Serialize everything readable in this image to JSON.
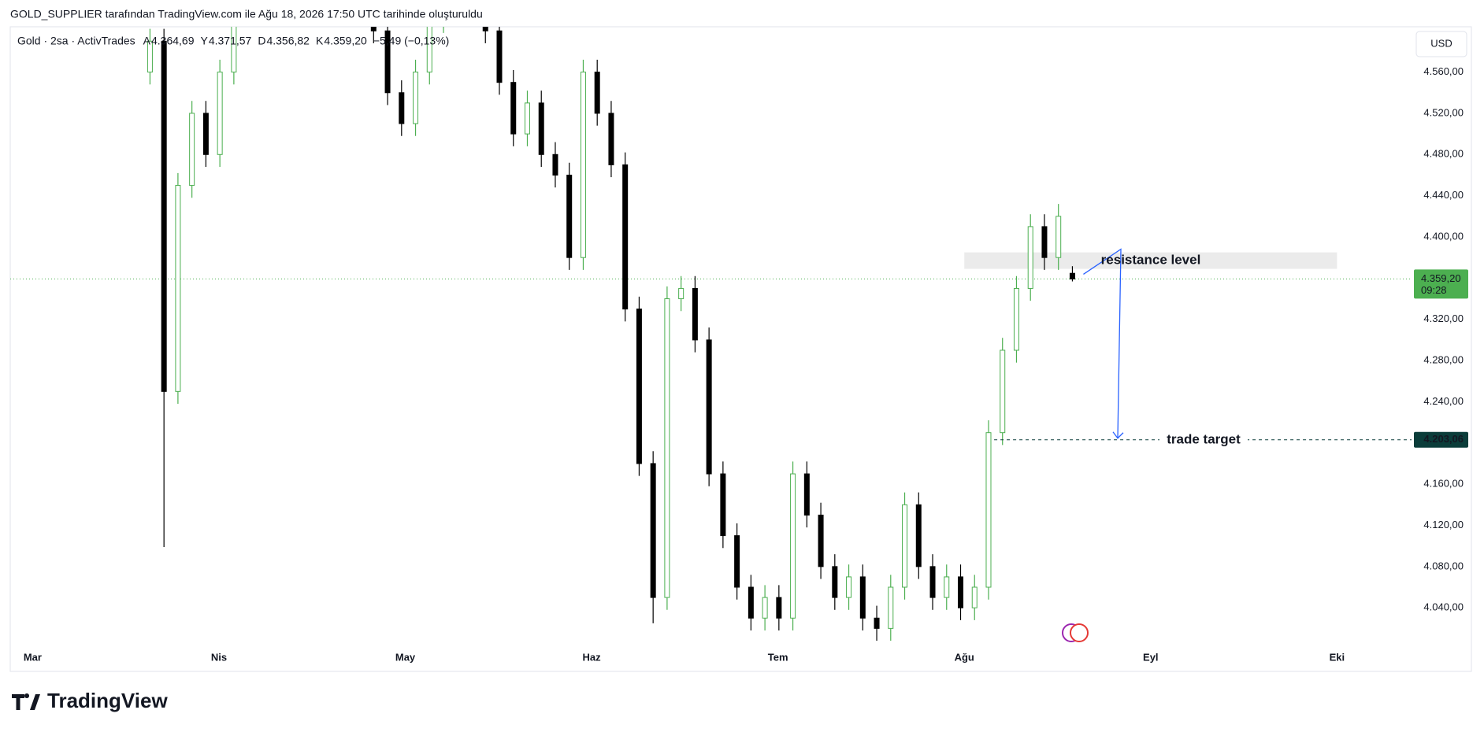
{
  "header": {
    "attribution": "GOLD_SUPPLIER tarafından TradingView.com ile Ağu 18, 2026 17:50 UTC tarihinde oluşturuldu",
    "logo": "TradingView"
  },
  "chart_data": {
    "type": "candlestick",
    "title": "Gold · 2sa · ActivTrades",
    "ohlc_legend": [
      {
        "label": "A",
        "value": "4.364,69"
      },
      {
        "label": "Y",
        "value": "4.371,57"
      },
      {
        "label": "D",
        "value": "4.356,82"
      },
      {
        "label": "K",
        "value": "4.359,20"
      }
    ],
    "change": "−5,49 (−0,13%)",
    "currency": "USD",
    "up_color": "#4caf50",
    "down_color": "#000000",
    "x": [
      0.63,
      0.705,
      0.78,
      0.855,
      0.93,
      1.005,
      1.08,
      1.155,
      1.23,
      1.305,
      1.38,
      1.455,
      1.53,
      1.605,
      1.68,
      1.755,
      1.83,
      1.905,
      1.98,
      2.055,
      2.13,
      2.205,
      2.28,
      2.355,
      2.43,
      2.505,
      2.58,
      2.655,
      2.73,
      2.805,
      2.88,
      2.955,
      3.03,
      3.105,
      3.18,
      3.255,
      3.33,
      3.405,
      3.48,
      3.555,
      3.63,
      3.705,
      3.78,
      3.855,
      3.93,
      4.005,
      4.08,
      4.155,
      4.23,
      4.305,
      4.38,
      4.455,
      4.53,
      4.605,
      4.68,
      4.755,
      4.83,
      4.905,
      4.98,
      5.055,
      5.13,
      5.205,
      5.28,
      5.355,
      5.43,
      5.505,
      5.58
    ],
    "open": [
      4560,
      4590,
      4250,
      4450,
      4520,
      4480,
      4560,
      4620,
      4680,
      4720,
      4700,
      4740,
      4710,
      4690,
      4660,
      4650,
      4630,
      4600,
      4540,
      4510,
      4560,
      4610,
      4650,
      4660,
      4640,
      4600,
      4550,
      4500,
      4530,
      4480,
      4460,
      4380,
      4560,
      4520,
      4470,
      4330,
      4180,
      4050,
      4340,
      4350,
      4300,
      4170,
      4110,
      4060,
      4030,
      4050,
      4030,
      4170,
      4130,
      4080,
      4050,
      4070,
      4030,
      4020,
      4060,
      4140,
      4080,
      4050,
      4070,
      4040,
      4060,
      4210,
      4290,
      4350,
      4410,
      4380,
      4364.69
    ],
    "high": [
      4602,
      4602,
      4462,
      4532,
      4532,
      4572,
      4632,
      4692,
      4732,
      4732,
      4752,
      4752,
      4722,
      4702,
      4672,
      4662,
      4642,
      4612,
      4552,
      4572,
      4622,
      4662,
      4672,
      4672,
      4652,
      4612,
      4562,
      4542,
      4542,
      4492,
      4472,
      4572,
      4572,
      4532,
      4482,
      4342,
      4192,
      4352,
      4362,
      4362,
      4312,
      4182,
      4122,
      4072,
      4062,
      4062,
      4182,
      4182,
      4142,
      4092,
      4082,
      4082,
      4042,
      4072,
      4152,
      4152,
      4092,
      4082,
      4082,
      4072,
      4222,
      4302,
      4362,
      4422,
      4422,
      4432,
      4371.57
    ],
    "low": [
      4548,
      4099,
      4238,
      4438,
      4468,
      4468,
      4548,
      4608,
      4668,
      4688,
      4688,
      4698,
      4678,
      4648,
      4638,
      4618,
      4588,
      4528,
      4498,
      4498,
      4548,
      4598,
      4638,
      4628,
      4588,
      4538,
      4488,
      4488,
      4468,
      4448,
      4368,
      4368,
      4508,
      4458,
      4318,
      4168,
      4025,
      4038,
      4328,
      4288,
      4158,
      4098,
      4048,
      4018,
      4018,
      4018,
      4018,
      4118,
      4068,
      4038,
      4038,
      4018,
      4008,
      4008,
      4048,
      4068,
      4038,
      4038,
      4028,
      4028,
      4048,
      4198,
      4278,
      4338,
      4368,
      4368,
      4356.82
    ],
    "close": [
      4590,
      4250,
      4450,
      4520,
      4480,
      4560,
      4620,
      4680,
      4720,
      4700,
      4740,
      4710,
      4690,
      4660,
      4650,
      4630,
      4600,
      4540,
      4510,
      4560,
      4610,
      4650,
      4660,
      4640,
      4600,
      4550,
      4500,
      4530,
      4480,
      4460,
      4380,
      4560,
      4520,
      4470,
      4330,
      4180,
      4050,
      4340,
      4350,
      4300,
      4170,
      4110,
      4060,
      4030,
      4050,
      4030,
      4170,
      4130,
      4080,
      4050,
      4070,
      4030,
      4020,
      4060,
      4140,
      4080,
      4050,
      4070,
      4040,
      4060,
      4210,
      4290,
      4350,
      4410,
      4380,
      4420,
      4359.2
    ],
    "xlim": [
      -0.12,
      7.4
    ],
    "xticks": [
      {
        "value": 0,
        "label": "Mar"
      },
      {
        "value": 1,
        "label": "Nis"
      },
      {
        "value": 2,
        "label": "May"
      },
      {
        "value": 3,
        "label": "Haz"
      },
      {
        "value": 4,
        "label": "Tem"
      },
      {
        "value": 5,
        "label": "Ağu"
      },
      {
        "value": 6,
        "label": "Eyl"
      },
      {
        "value": 7,
        "label": "Eki"
      }
    ],
    "ylim": [
      4005,
      4604
    ],
    "yticks": [
      {
        "value": 4040,
        "label": "4.040,00"
      },
      {
        "value": 4080,
        "label": "4.080,00"
      },
      {
        "value": 4120,
        "label": "4.120,00"
      },
      {
        "value": 4160,
        "label": "4.160,00"
      },
      {
        "value": 4240,
        "label": "4.240,00"
      },
      {
        "value": 4280,
        "label": "4.280,00"
      },
      {
        "value": 4320,
        "label": "4.320,00"
      },
      {
        "value": 4400,
        "label": "4.400,00"
      },
      {
        "value": 4440,
        "label": "4.440,00"
      },
      {
        "value": 4480,
        "label": "4.480,00"
      },
      {
        "value": 4520,
        "label": "4.520,00"
      },
      {
        "value": 4560,
        "label": "4.560,00"
      }
    ],
    "last_price": {
      "value": 4359.2,
      "label": "4.359,20",
      "countdown": "09:28"
    },
    "resistance_zone": {
      "x": [
        5.0,
        7.0
      ],
      "y": [
        4369,
        4385
      ],
      "text": "resistance level"
    },
    "target": {
      "value": 4203.06,
      "label": "4.203,06",
      "x_start": 5.16,
      "text": "trade target"
    }
  }
}
